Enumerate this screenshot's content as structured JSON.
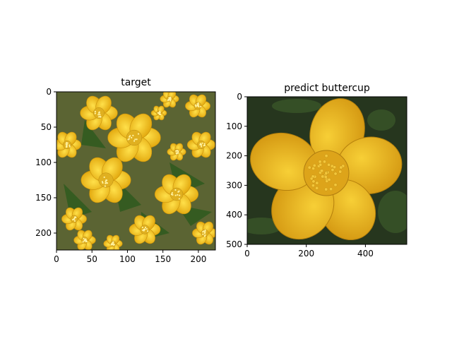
{
  "chart_data": [
    {
      "type": "image",
      "title": "target",
      "image_extent": {
        "width": 224,
        "height": 224
      },
      "x_ticks": [
        0,
        50,
        100,
        150,
        200
      ],
      "y_ticks": [
        0,
        50,
        100,
        150,
        200
      ],
      "y_inverted": true,
      "image_subject": "cluster of yellow winter aconite flowers with green leafy ruffs",
      "colors": {
        "petal": "#F2C417",
        "petal_dark": "#D9A10C",
        "leaf": "#4E7A2E",
        "soil": "#6B4A3A"
      }
    },
    {
      "type": "image",
      "title": "predict buttercup",
      "image_extent": {
        "width": 540,
        "height": 500
      },
      "x_ticks": [
        0,
        200,
        400
      ],
      "y_ticks": [
        0,
        100,
        200,
        300,
        400,
        500
      ],
      "y_inverted": true,
      "image_subject": "single five-petaled yellow buttercup flower on dark green background",
      "colors": {
        "petal": "#E9B61B",
        "petal_dark": "#C98F0C",
        "background": "#26361E"
      }
    }
  ]
}
